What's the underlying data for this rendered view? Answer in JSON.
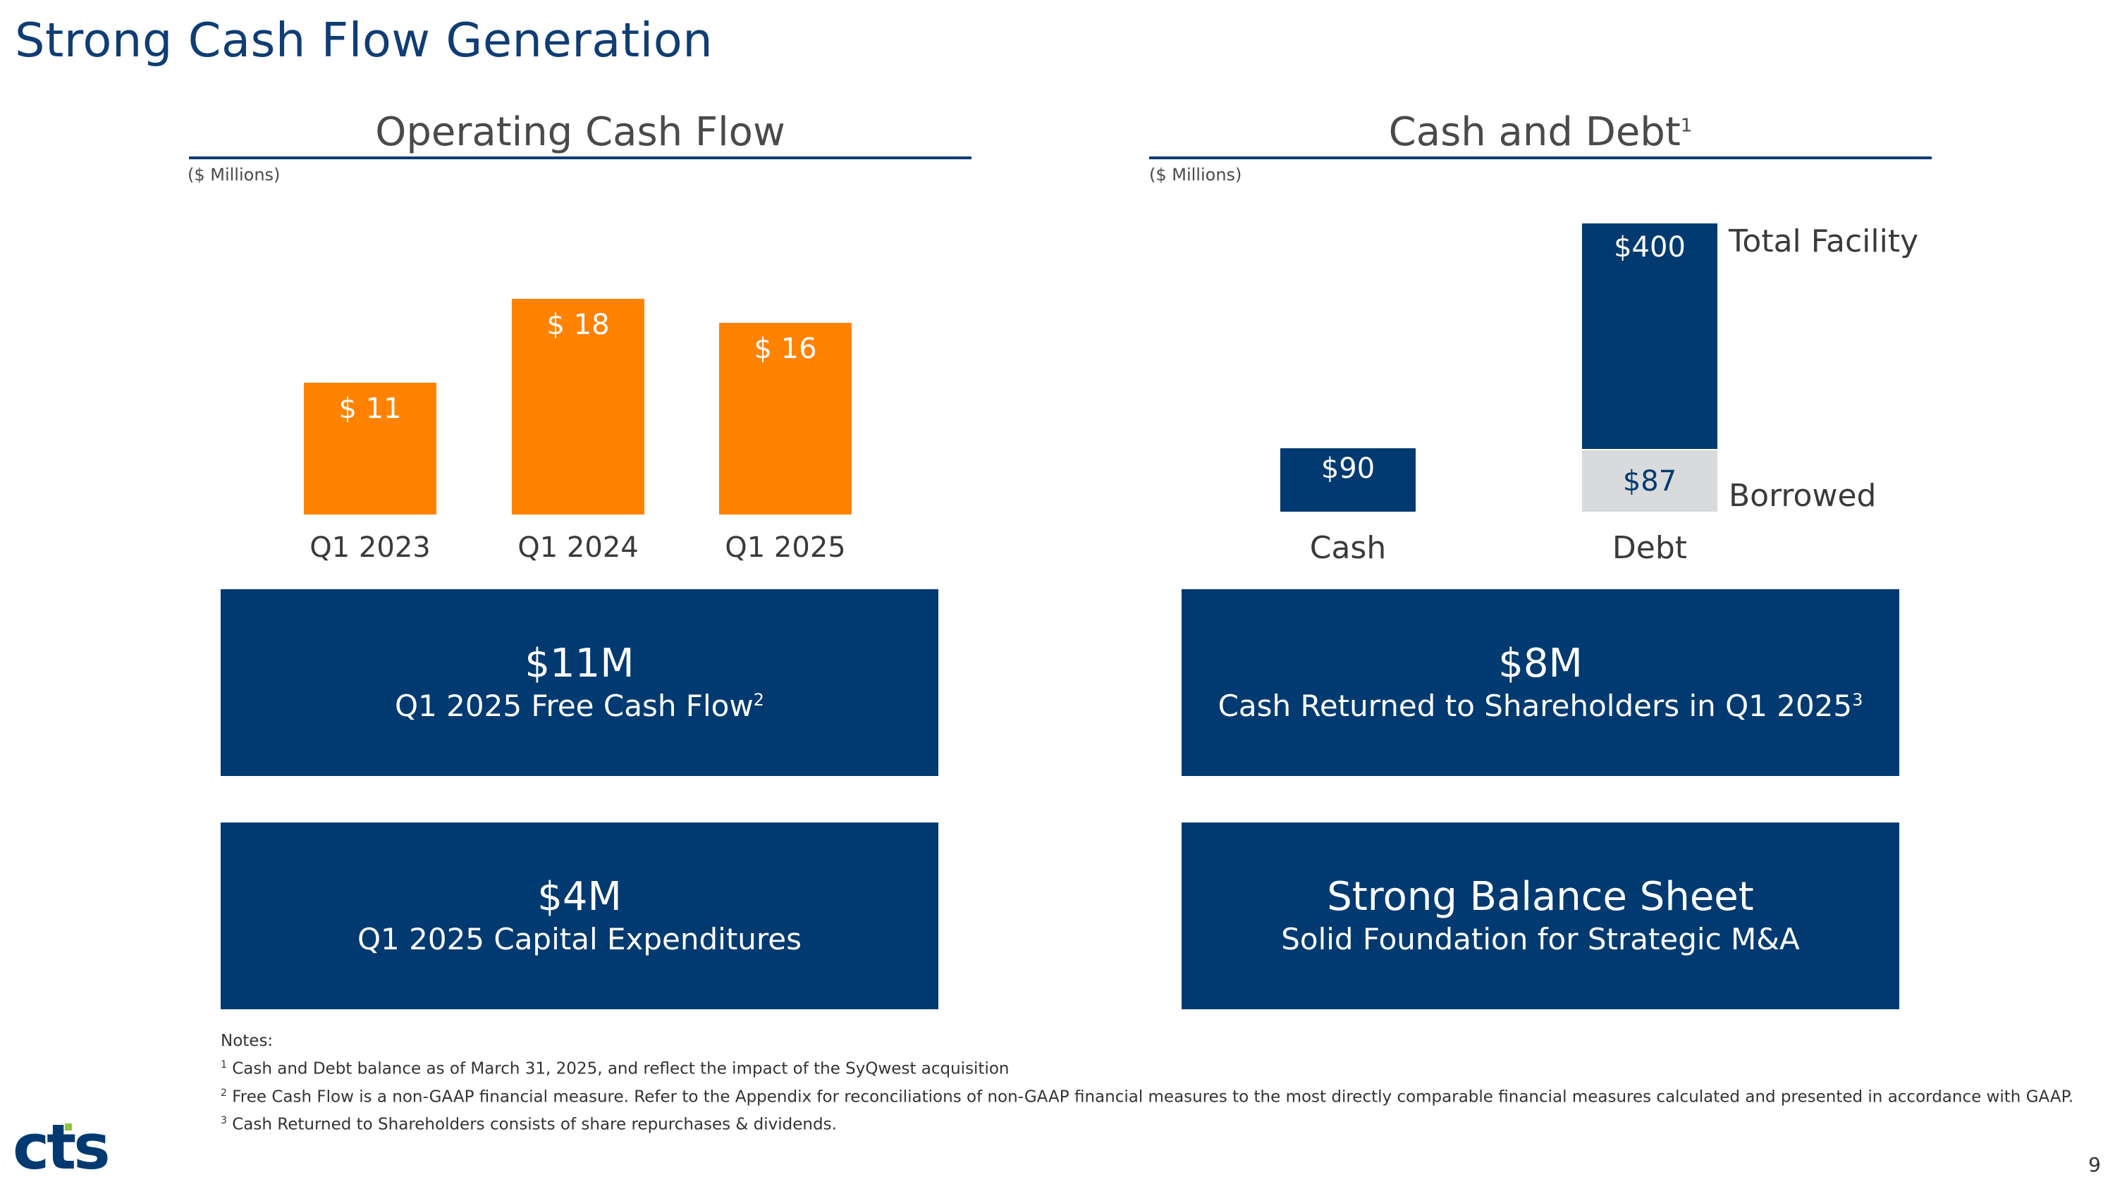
{
  "page": {
    "title": "Strong Cash Flow Generation",
    "page_number": "9",
    "logo_text": "cts"
  },
  "left_panel": {
    "title": "Operating Cash Flow",
    "units": "($ Millions)"
  },
  "right_panel": {
    "title": "Cash and Debt",
    "title_sup": "1",
    "units": "($ Millions)"
  },
  "chart_data": [
    {
      "type": "bar",
      "title": "Operating Cash Flow",
      "ylabel": "($ Millions)",
      "categories": [
        "Q1 2023",
        "Q1 2024",
        "Q1 2025"
      ],
      "values": [
        11,
        18,
        16
      ],
      "data_labels": [
        "$ 11",
        "$ 18",
        "$ 16"
      ],
      "ylim": [
        0,
        20
      ],
      "color": "#ff8200"
    },
    {
      "type": "bar",
      "title": "Cash and Debt",
      "ylabel": "($ Millions)",
      "categories": [
        "Cash",
        "Debt"
      ],
      "series": [
        {
          "name": "Cash",
          "values": [
            90,
            null
          ],
          "labels": [
            "$90",
            ""
          ],
          "color": "#003a70"
        },
        {
          "name": "Borrowed",
          "values": [
            null,
            87
          ],
          "labels": [
            "",
            "$87"
          ],
          "color": "#d9dadb"
        },
        {
          "name": "Total Facility",
          "values": [
            null,
            400
          ],
          "labels": [
            "",
            "$400"
          ],
          "color": "#003a70"
        }
      ],
      "annotations": [
        "Total Facility",
        "Borrowed"
      ]
    }
  ],
  "cards": [
    {
      "big": "$11M",
      "sub": "Q1 2025 Free Cash Flow",
      "sup": "2"
    },
    {
      "big": "$8M",
      "sub": "Cash Returned to Shareholders in Q1 2025",
      "sup": "3"
    },
    {
      "big": "$4M",
      "sub": "Q1 2025 Capital Expenditures",
      "sup": ""
    },
    {
      "big": "Strong Balance Sheet",
      "sub": "Solid Foundation for Strategic M&A",
      "sup": ""
    }
  ],
  "notes": {
    "heading": "Notes:",
    "items": [
      {
        "sup": "1",
        "text": "Cash and Debt balance as of March 31, 2025, and reflect the impact of the SyQwest acquisition"
      },
      {
        "sup": "2",
        "text": "Free Cash Flow is a non-GAAP financial measure. Refer to the Appendix for reconciliations of non-GAAP financial measures to the most directly comparable financial measures calculated and presented in accordance with GAAP."
      },
      {
        "sup": "3",
        "text": "Cash Returned to Shareholders consists of share repurchases & dividends."
      }
    ]
  },
  "colors": {
    "navy": "#003a70",
    "title_blue": "#0f3d74",
    "orange": "#ff8200",
    "grey": "#d9dadb",
    "logo_accent": "#8dc63f"
  }
}
